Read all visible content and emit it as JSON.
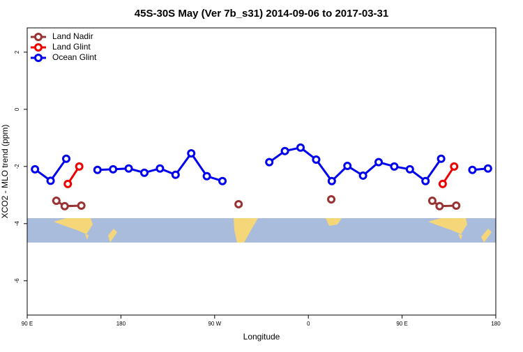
{
  "chart_data": {
    "type": "line",
    "title": "45S-30S May (Ver 7b_s31)   2014-09-06 to 2017-03-31",
    "x_label": "Longitude",
    "y_label": "XCO2 - MLO trend (ppm)",
    "xlim": [
      90,
      540
    ],
    "ylim": [
      -7.2,
      2.85
    ],
    "xticks": [
      {
        "value": 90,
        "label": "90 E"
      },
      180,
      {
        "value": 270,
        "label": "90 W"
      },
      {
        "value": 360,
        "label": "0"
      },
      {
        "value": 450,
        "label": "90 E"
      },
      {
        "value": 540,
        "label": "180"
      }
    ],
    "yticks": [
      -6,
      -4,
      -2,
      0,
      2
    ],
    "legend": "top-left",
    "series": [
      {
        "name": "Land Nadir",
        "color": "#993333",
        "x": [
          118,
          126,
          142,
          220,
          293,
          340,
          382,
          440,
          479,
          486,
          502
        ],
        "values": [
          -3.2,
          -3.39,
          -3.37,
          null,
          -3.32,
          null,
          -3.15,
          null,
          -3.2,
          -3.39,
          -3.37
        ]
      },
      {
        "name": "Land Glint",
        "color": "#ee0000",
        "x": [
          129,
          140,
          320,
          489,
          500
        ],
        "values": [
          -2.61,
          -2.0,
          null,
          -2.61,
          -2.0
        ]
      },
      {
        "name": "Ocean Glint",
        "color": "#0000ee",
        "x": [
          97.5,
          112.5,
          127.5,
          142.5,
          157.5,
          172.5,
          187.5,
          202.5,
          217.5,
          232.5,
          247.5,
          262.5,
          277.5,
          292.5,
          307.5,
          322.5,
          337.5,
          352.5,
          367.5,
          382.5,
          397.5,
          412.5,
          427.5,
          442.5,
          457.5,
          472.5,
          487.5,
          502.5,
          517.5,
          532.5
        ],
        "values": [
          -2.1,
          -2.5,
          -1.73,
          null,
          -2.12,
          -2.1,
          -2.07,
          -2.22,
          -2.07,
          -2.29,
          -1.54,
          -2.34,
          -2.51,
          null,
          null,
          -1.85,
          -1.46,
          -1.34,
          -1.76,
          -2.51,
          -1.98,
          -2.32,
          -1.85,
          -2.0,
          -2.1,
          -2.51,
          -1.73,
          null,
          -2.12,
          -2.07
        ]
      }
    ]
  }
}
